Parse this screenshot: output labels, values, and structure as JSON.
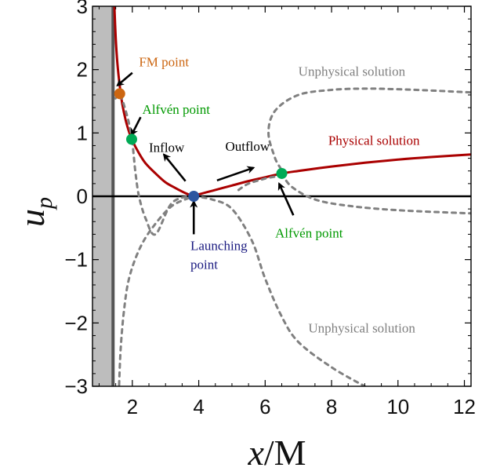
{
  "chart_data": {
    "type": "line",
    "xlabel": "x/M",
    "ylabel": "u_p",
    "xlabel_parts": [
      "x",
      "/M"
    ],
    "ylabel_parts": [
      "u",
      "p"
    ],
    "xlim": [
      0.8,
      12.2
    ],
    "ylim": [
      -3,
      3
    ],
    "x_ticks": [
      2,
      4,
      6,
      8,
      10,
      12
    ],
    "y_ticks": [
      -3,
      -2,
      -1,
      0,
      1,
      2,
      3
    ],
    "x_tick_labels": [
      "2",
      "4",
      "6",
      "8",
      "10",
      "12"
    ],
    "y_tick_labels": [
      "−3",
      "−2",
      "−1",
      "0",
      "1",
      "2",
      "3"
    ],
    "horizon": {
      "x_max": 1.45,
      "line_x": 1.42
    },
    "series": [
      {
        "name": "Physical solution",
        "style": "solid",
        "color": "#aa0000",
        "points": [
          [
            1.46,
            3.0
          ],
          [
            1.5,
            2.5
          ],
          [
            1.55,
            2.1
          ],
          [
            1.62,
            1.75
          ],
          [
            1.7,
            1.45
          ],
          [
            1.8,
            1.2
          ],
          [
            1.9,
            1.02
          ],
          [
            2.0,
            0.88
          ],
          [
            2.2,
            0.68
          ],
          [
            2.4,
            0.52
          ],
          [
            2.7,
            0.36
          ],
          [
            3.0,
            0.22
          ],
          [
            3.3,
            0.13
          ],
          [
            3.6,
            0.05
          ],
          [
            3.85,
            0.0
          ],
          [
            4.0,
            0.03
          ],
          [
            4.5,
            0.1
          ],
          [
            5.0,
            0.17
          ],
          [
            5.5,
            0.24
          ],
          [
            6.0,
            0.3
          ],
          [
            6.5,
            0.36
          ],
          [
            7.0,
            0.4
          ],
          [
            8.0,
            0.47
          ],
          [
            9.0,
            0.53
          ],
          [
            10.0,
            0.58
          ],
          [
            11.0,
            0.62
          ],
          [
            12.2,
            0.66
          ]
        ]
      },
      {
        "name": "Unphysical solution (upper)",
        "style": "dashed",
        "color": "#808080",
        "points": [
          [
            2.0,
            0.88
          ],
          [
            1.9,
            1.15
          ],
          [
            1.8,
            1.35
          ],
          [
            1.7,
            1.52
          ],
          [
            1.62,
            1.62
          ],
          [
            1.55,
            1.6
          ],
          [
            1.45,
            1.5
          ]
        ]
      },
      {
        "name": "Unphysical solution (left-lower)",
        "style": "dashed",
        "color": "#808080",
        "points": [
          [
            2.0,
            0.88
          ],
          [
            2.05,
            0.6
          ],
          [
            2.1,
            0.35
          ],
          [
            2.2,
            0.0
          ],
          [
            2.4,
            -0.35
          ],
          [
            2.7,
            -0.6
          ],
          [
            3.2,
            -0.1
          ],
          [
            3.85,
            0.0
          ],
          [
            3.2,
            -0.15
          ],
          [
            2.6,
            -0.5
          ],
          [
            2.2,
            -0.85
          ],
          [
            1.9,
            -1.3
          ],
          [
            1.75,
            -1.8
          ],
          [
            1.65,
            -2.4
          ],
          [
            1.6,
            -3.0
          ]
        ]
      },
      {
        "name": "Unphysical solution (right-upper)",
        "style": "dashed",
        "color": "#808080",
        "points": [
          [
            5.2,
            0.1
          ],
          [
            5.5,
            0.2
          ],
          [
            6.0,
            0.28
          ],
          [
            6.5,
            0.36
          ],
          [
            6.3,
            0.6
          ],
          [
            6.1,
            1.0
          ],
          [
            6.3,
            1.35
          ],
          [
            7.0,
            1.6
          ],
          [
            8.0,
            1.68
          ],
          [
            9.0,
            1.7
          ],
          [
            10.0,
            1.69
          ],
          [
            11.0,
            1.67
          ],
          [
            12.2,
            1.64
          ]
        ]
      },
      {
        "name": "Unphysical solution (right-lower)",
        "style": "dashed",
        "color": "#808080",
        "points": [
          [
            3.85,
            0.0
          ],
          [
            4.4,
            -0.05
          ],
          [
            5.0,
            -0.2
          ],
          [
            5.6,
            -0.7
          ],
          [
            6.0,
            -1.3
          ],
          [
            6.5,
            -1.9
          ],
          [
            7.0,
            -2.3
          ],
          [
            8.0,
            -2.7
          ],
          [
            9.0,
            -3.0
          ]
        ]
      },
      {
        "name": "Unphysical solution (right tail)",
        "style": "dashed",
        "color": "#808080",
        "points": [
          [
            6.5,
            0.36
          ],
          [
            6.8,
            0.15
          ],
          [
            7.5,
            -0.05
          ],
          [
            8.5,
            -0.15
          ],
          [
            10.0,
            -0.22
          ],
          [
            12.2,
            -0.27
          ]
        ]
      }
    ],
    "points": [
      {
        "name": "FM point",
        "x": 1.62,
        "y": 1.62,
        "color": "#cc6611"
      },
      {
        "name": "Alfvén point (inflow)",
        "x": 1.98,
        "y": 0.9,
        "color": "#00aa55"
      },
      {
        "name": "Launching point",
        "x": 3.85,
        "y": 0.0,
        "color": "#2c55a0"
      },
      {
        "name": "Alfvén point (outflow)",
        "x": 6.5,
        "y": 0.36,
        "color": "#00aa55"
      }
    ],
    "annotations": [
      {
        "text": "FM point",
        "color": "#cc6611",
        "x": 2.2,
        "y": 2.05
      },
      {
        "text": "Alfvén point",
        "color": "#009900",
        "x": 2.3,
        "y": 1.3
      },
      {
        "text": "Inflow",
        "color": "#000000",
        "x": 2.5,
        "y": 0.7
      },
      {
        "text": "Outflow",
        "color": "#000000",
        "x": 4.8,
        "y": 0.72
      },
      {
        "text": "Physical solution",
        "color": "#aa0000",
        "x": 7.9,
        "y": 0.81
      },
      {
        "text": "Unphysical solution",
        "color": "#808080",
        "x": 7.0,
        "y": 1.9
      },
      {
        "text": "Launching point",
        "color": "#1a1a80",
        "x": 3.75,
        "y": -0.85
      },
      {
        "text": "Alfvén point",
        "color": "#009900",
        "x": 6.3,
        "y": -0.65
      },
      {
        "text": "Unphysical solution",
        "color": "#808080",
        "x": 7.3,
        "y": -2.15
      }
    ],
    "arrows": [
      {
        "from": [
          2.0,
          1.95
        ],
        "to": [
          1.55,
          1.75
        ]
      },
      {
        "from": [
          2.25,
          1.25
        ],
        "to": [
          1.98,
          0.97
        ]
      },
      {
        "from": [
          3.6,
          0.24
        ],
        "to": [
          2.95,
          0.66
        ]
      },
      {
        "from": [
          4.55,
          0.25
        ],
        "to": [
          5.65,
          0.45
        ]
      },
      {
        "from": [
          3.85,
          -0.6
        ],
        "to": [
          3.85,
          -0.08
        ]
      },
      {
        "from": [
          6.85,
          -0.3
        ],
        "to": [
          6.42,
          0.2
        ]
      }
    ]
  }
}
